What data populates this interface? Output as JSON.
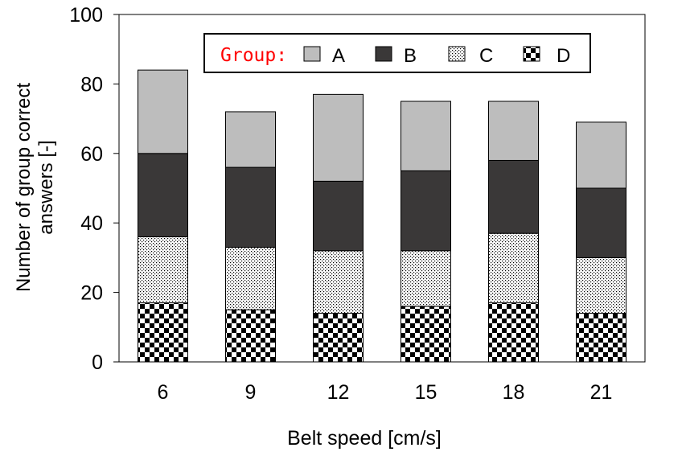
{
  "chart_data": {
    "type": "bar",
    "stacked": true,
    "categories": [
      "6",
      "9",
      "12",
      "15",
      "18",
      "21"
    ],
    "series": [
      {
        "name": "D",
        "values": [
          17,
          15,
          14,
          16,
          17,
          14
        ],
        "fill": "checker",
        "color": "#000000"
      },
      {
        "name": "C",
        "values": [
          19,
          18,
          18,
          16,
          20,
          16
        ],
        "fill": "dots",
        "color": "#000000"
      },
      {
        "name": "B",
        "values": [
          24,
          23,
          20,
          23,
          21,
          20
        ],
        "fill": "solid",
        "color": "#3a3838"
      },
      {
        "name": "A",
        "values": [
          24,
          16,
          25,
          20,
          17,
          19
        ],
        "fill": "solid",
        "color": "#bdbdbd"
      }
    ],
    "xlabel": "Belt speed [cm/s]",
    "ylabel_line1": "Number of group correct",
    "ylabel_line2": "answers [-]",
    "ylim": [
      0,
      100
    ],
    "yticks": [
      "0",
      "20",
      "40",
      "60",
      "80",
      "100"
    ],
    "legend": {
      "title": "Group:",
      "title_color": "#ff0000",
      "entries": [
        "A",
        "B",
        "C",
        "D"
      ],
      "placement": "top"
    },
    "grid": false
  }
}
